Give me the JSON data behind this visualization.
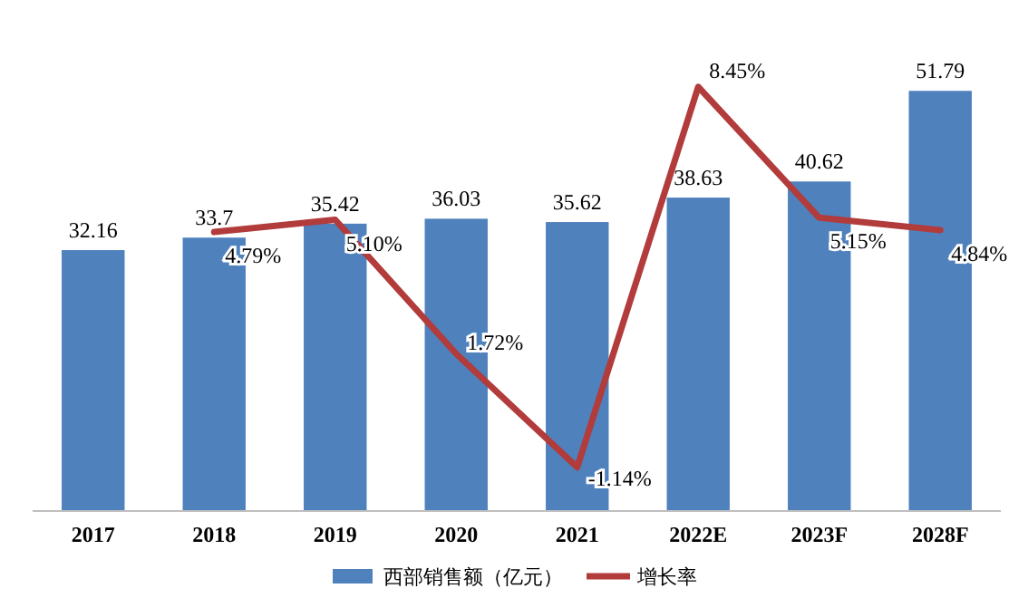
{
  "chart_data": {
    "type": "bar",
    "categories": [
      "2017",
      "2018",
      "2019",
      "2020",
      "2021",
      "2022E",
      "2023F",
      "2028F"
    ],
    "series": [
      {
        "name": "西部销售额（亿元）",
        "color": "#4f81bd",
        "values": [
          32.16,
          33.7,
          35.42,
          36.03,
          35.62,
          38.63,
          40.62,
          51.79
        ],
        "value_labels": [
          "32.16",
          "33.7",
          "35.42",
          "36.03",
          "35.62",
          "38.63",
          "40.62",
          "51.79"
        ]
      },
      {
        "name": "增长率",
        "type": "line",
        "axis": "y2",
        "color": "#b23b3b",
        "values": [
          null,
          4.79,
          5.1,
          1.72,
          -1.14,
          8.45,
          5.15,
          4.84
        ],
        "value_labels": [
          null,
          "4.79%",
          "5.10%",
          "1.72%",
          "-1.14%",
          "8.45%",
          "5.15%",
          "4.84%"
        ]
      }
    ],
    "tick_labels": "x",
    "legend": "bottom",
    "grid": false,
    "marker": "none",
    "line_style": "solid"
  }
}
